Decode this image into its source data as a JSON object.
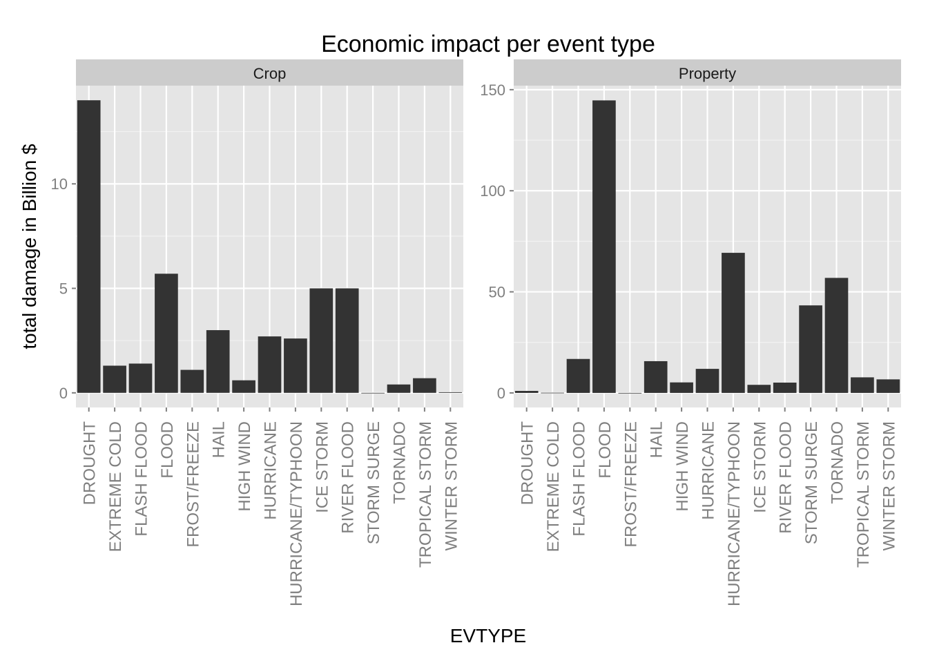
{
  "chart_data": {
    "type": "bar",
    "title": "Economic impact per event type",
    "xlabel": "EVTYPE",
    "ylabel": "total damage in Billion $",
    "categories": [
      "DROUGHT",
      "EXTREME COLD",
      "FLASH FLOOD",
      "FLOOD",
      "FROST/FREEZE",
      "HAIL",
      "HIGH WIND",
      "HURRICANE",
      "HURRICANE/TYPHOON",
      "ICE STORM",
      "RIVER FLOOD",
      "STORM SURGE",
      "TORNADO",
      "TROPICAL STORM",
      "WINTER STORM"
    ],
    "facets": [
      {
        "name": "Crop",
        "values": [
          14.0,
          1.3,
          1.4,
          5.7,
          1.1,
          3.0,
          0.6,
          2.7,
          2.6,
          5.0,
          5.0,
          0.0,
          0.4,
          0.7,
          0.03
        ],
        "ylim": [
          -0.7,
          14.7
        ],
        "yticks": [
          0,
          5,
          10
        ],
        "grid": true
      },
      {
        "name": "Property",
        "values": [
          1.0,
          0.1,
          16.8,
          144.7,
          0.01,
          15.7,
          5.2,
          11.9,
          69.3,
          4.0,
          5.1,
          43.3,
          56.9,
          7.7,
          6.7
        ],
        "ylim": [
          -7.2,
          152.0
        ],
        "yticks": [
          0,
          50,
          100,
          150
        ],
        "grid": true
      }
    ],
    "colors": {
      "bar": "#333333",
      "panel": "#e5e5e5",
      "strip": "#cccccc",
      "grid_major": "#ffffff",
      "grid_minor": "#f2f2f2",
      "tick_label": "#7f7f7f"
    }
  }
}
